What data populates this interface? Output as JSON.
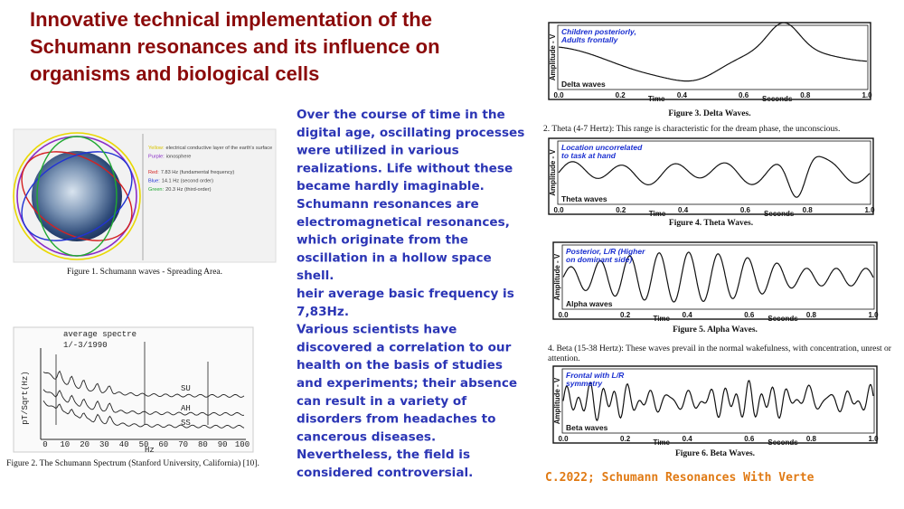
{
  "title": [
    "Innovative technical implementation of the",
    "Schumann resonances and its influence on",
    "organisms and biological cells"
  ],
  "figure1": {
    "legend": [
      {
        "key": "Yellow:",
        "text": "electrical conductive layer of the earth's surface"
      },
      {
        "key": "Purple:",
        "text": "ionosphere"
      },
      {
        "key": "Red:",
        "text": "7.83 Hz (fundamental frequency)"
      },
      {
        "key": "Blue:",
        "text": "14.1 Hz (second order)"
      },
      {
        "key": "Green:",
        "text": "20.3 Hz (third-order)"
      }
    ],
    "caption": "Figure 1. Schumann waves - Spreading Area."
  },
  "figure2": {
    "heading": "average spectre",
    "date": "1/-3/1990",
    "ylabel": "pT/Sqrt(Hz)",
    "curves": [
      "SU",
      "AH",
      "SS"
    ],
    "xticks": [
      "0",
      "10",
      "20",
      "30",
      "40",
      "50",
      "60",
      "70",
      "80",
      "90",
      "100"
    ],
    "xlabel": "Hz",
    "caption": "Figure 2. The Schumann Spectrum (Stanford University, California) [10]."
  },
  "body": [
    "Over the course of time in the",
    "digital age, oscillating processes",
    "were utilized in various",
    "realizations. Life without these",
    "became hardly imaginable.",
    "Schumann resonances are",
    "electromagnetical resonances,",
    "which originate from the",
    "oscillation in a hollow space",
    "shell.",
    "heir average basic frequency is",
    "7,83Hz.",
    " Various scientists have",
    "discovered a correlation to our",
    "health on the basis of studies",
    "and experiments; their absence",
    "can result in a variety of",
    "disorders from headaches to",
    "cancerous diseases.",
    "Nevertheless, the field is",
    "considered controversial."
  ],
  "axis": {
    "ylabel": "Amplitude - V",
    "time": "Time",
    "seconds": "Seconds",
    "ticks": [
      "0.0",
      "0.2",
      "0.4",
      "0.6",
      "0.8",
      "1.0"
    ]
  },
  "waves": [
    {
      "label": [
        "Children posteriorly,",
        "Adults frontally"
      ],
      "name": "Delta waves",
      "caption": "Figure 3. Delta Waves."
    },
    {
      "label": [
        "Location uncorrelated",
        "to task at hand"
      ],
      "name": "Theta waves",
      "caption": "Figure 4. Theta Waves."
    },
    {
      "label": [
        "Posterior, L/R (Higher",
        "on dominant side)"
      ],
      "name": "Alpha waves",
      "caption": "Figure 5. Alpha Waves."
    },
    {
      "label": [
        "Frontal with L/R",
        "symmetry"
      ],
      "name": "Beta waves",
      "caption": "Figure 6. Beta Waves."
    }
  ],
  "theta_note": "2. Theta (4-7 Hertz): This range is characteristic for the dream phase, the unconscious.",
  "beta_note": [
    "4. Beta (15-38 Hertz): These waves prevail in the normal wakefulness, with concentration, unrest or",
    "attention."
  ],
  "footer": "C.2022; Schumann Resonances With Verte"
}
